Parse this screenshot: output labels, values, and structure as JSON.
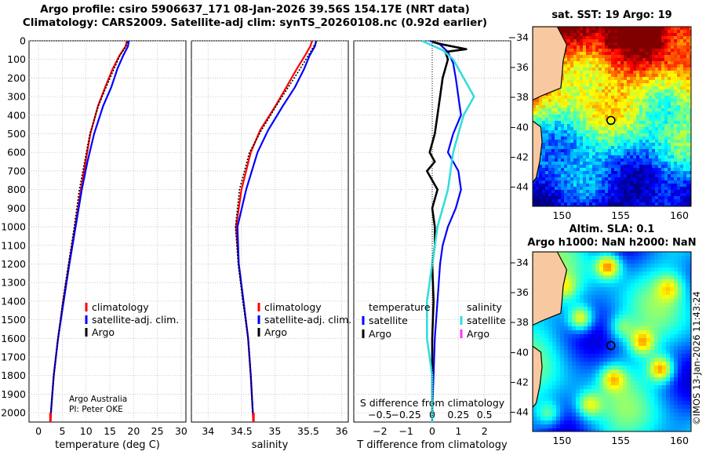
{
  "titles": {
    "line1": "Argo profile: csiro 5906637_171 08-Jan-2026 39.56S 154.17E (NRT data)",
    "line2": "Climatology: CARS2009. Satellite-adj clim: synTS_20260108.nc (0.92d earlier)"
  },
  "stamp": "©IMOS 13-Jan-2026 11:43:24",
  "colors": {
    "climatology": "#ff0000",
    "satellite": "#0000ff",
    "argo": "#000000",
    "sat_salinity": "#33dddd",
    "argo_salinity": "#ff33ff",
    "land": "#f8c8a0"
  },
  "chart_data": [
    {
      "id": "temperature",
      "type": "line",
      "xlabel": "temperature (deg C)",
      "ylabel": "",
      "xlim": [
        -2,
        31
      ],
      "ylim": [
        2050,
        0
      ],
      "xticks": [
        0,
        5,
        10,
        15,
        20,
        25,
        30
      ],
      "yticks": [
        0,
        100,
        200,
        300,
        400,
        500,
        600,
        700,
        800,
        900,
        1000,
        1100,
        1200,
        1300,
        1400,
        1500,
        1600,
        1700,
        1800,
        1900,
        2000
      ],
      "legend": [
        "climatology",
        "satellite-adj. clim.",
        "Argo"
      ],
      "annotation": [
        "Argo Australia",
        "PI: Peter OKE"
      ],
      "series": [
        {
          "name": "climatology",
          "points": [
            [
              18.6,
              0
            ],
            [
              18.3,
              30
            ],
            [
              17.0,
              80
            ],
            [
              15.6,
              150
            ],
            [
              14.0,
              250
            ],
            [
              12.5,
              350
            ],
            [
              10.9,
              500
            ],
            [
              9.9,
              650
            ],
            [
              8.9,
              800
            ],
            [
              7.7,
              1000
            ],
            [
              6.4,
              1200
            ],
            [
              5.2,
              1400
            ],
            [
              4.1,
              1600
            ],
            [
              3.2,
              1800
            ],
            [
              2.6,
              2000
            ],
            [
              2.5,
              2050
            ]
          ]
        },
        {
          "name": "satellite-adj. clim.",
          "points": [
            [
              19.0,
              0
            ],
            [
              18.8,
              30
            ],
            [
              17.8,
              80
            ],
            [
              16.6,
              150
            ],
            [
              15.3,
              250
            ],
            [
              13.6,
              350
            ],
            [
              11.7,
              500
            ],
            [
              10.3,
              650
            ],
            [
              9.1,
              800
            ],
            [
              7.8,
              1000
            ],
            [
              6.5,
              1200
            ],
            [
              5.3,
              1400
            ],
            [
              4.1,
              1600
            ],
            [
              3.2,
              1800
            ],
            [
              2.6,
              2000
            ],
            [
              2.5,
              2050
            ]
          ]
        },
        {
          "name": "Argo",
          "points": [
            [
              18.7,
              5
            ],
            [
              18.4,
              30
            ],
            [
              17.1,
              80
            ],
            [
              15.9,
              150
            ],
            [
              14.2,
              250
            ],
            [
              12.6,
              350
            ],
            [
              10.8,
              500
            ],
            [
              9.7,
              650
            ],
            [
              8.6,
              800
            ],
            [
              7.5,
              1000
            ],
            [
              6.3,
              1200
            ],
            [
              5.1,
              1400
            ],
            [
              4.1,
              1600
            ],
            [
              3.2,
              1800
            ],
            [
              2.6,
              2000
            ]
          ]
        }
      ]
    },
    {
      "id": "salinity",
      "type": "line",
      "xlabel": "salinity",
      "xlim": [
        33.75,
        36.1
      ],
      "ylim": [
        2050,
        0
      ],
      "xticks": [
        34,
        34.5,
        35,
        35.5,
        36
      ],
      "legend": [
        "climatology",
        "satellite-adj. clim.",
        "Argo"
      ],
      "series": [
        {
          "name": "climatology",
          "points": [
            [
              35.56,
              0
            ],
            [
              35.53,
              30
            ],
            [
              35.45,
              80
            ],
            [
              35.33,
              150
            ],
            [
              35.17,
              250
            ],
            [
              35.01,
              350
            ],
            [
              34.78,
              480
            ],
            [
              34.64,
              600
            ],
            [
              34.5,
              800
            ],
            [
              34.42,
              1000
            ],
            [
              34.46,
              1200
            ],
            [
              34.53,
              1400
            ],
            [
              34.6,
              1600
            ],
            [
              34.64,
              1800
            ],
            [
              34.67,
              2000
            ],
            [
              34.68,
              2050
            ]
          ]
        },
        {
          "name": "satellite-adj. clim.",
          "points": [
            [
              35.62,
              0
            ],
            [
              35.6,
              30
            ],
            [
              35.52,
              80
            ],
            [
              35.44,
              150
            ],
            [
              35.3,
              250
            ],
            [
              35.12,
              350
            ],
            [
              34.9,
              480
            ],
            [
              34.74,
              600
            ],
            [
              34.57,
              800
            ],
            [
              34.44,
              1000
            ],
            [
              34.46,
              1200
            ],
            [
              34.53,
              1400
            ],
            [
              34.6,
              1600
            ],
            [
              34.64,
              1800
            ],
            [
              34.67,
              2000
            ],
            [
              34.68,
              2050
            ]
          ]
        },
        {
          "name": "Argo",
          "points": [
            [
              35.62,
              10
            ],
            [
              35.58,
              30
            ],
            [
              35.5,
              80
            ],
            [
              35.38,
              150
            ],
            [
              35.2,
              250
            ],
            [
              35.02,
              350
            ],
            [
              34.8,
              480
            ],
            [
              34.62,
              600
            ],
            [
              34.47,
              800
            ],
            [
              34.41,
              1000
            ],
            [
              34.45,
              1200
            ],
            [
              34.52,
              1400
            ],
            [
              34.6,
              1600
            ],
            [
              34.64,
              1800
            ],
            [
              34.67,
              2000
            ]
          ]
        }
      ]
    },
    {
      "id": "differences",
      "type": "line",
      "xlabel": "T difference from climatology",
      "x2label": "S difference from climatology",
      "xlim": [
        -3,
        3
      ],
      "ylim": [
        2050,
        0
      ],
      "xticks": [
        -2,
        -1,
        0,
        1,
        2
      ],
      "x2ticks": [
        -0.5,
        -0.25,
        0,
        0.25,
        0.5
      ],
      "legend_temperature_title": "temperature",
      "legend_temperature": [
        "satellite",
        "Argo"
      ],
      "legend_salinity_title": "salinity",
      "legend_salinity": [
        "satellite",
        "Argo"
      ],
      "series": [
        {
          "name": "temperature satellite",
          "points": [
            [
              -0.1,
              0
            ],
            [
              0.3,
              20
            ],
            [
              0.6,
              60
            ],
            [
              0.8,
              120
            ],
            [
              0.9,
              200
            ],
            [
              1.0,
              300
            ],
            [
              1.1,
              400
            ],
            [
              0.8,
              500
            ],
            [
              0.6,
              600
            ],
            [
              1.0,
              700
            ],
            [
              1.1,
              800
            ],
            [
              0.9,
              900
            ],
            [
              0.6,
              1000
            ],
            [
              0.4,
              1100
            ],
            [
              0.3,
              1200
            ],
            [
              0.2,
              1400
            ],
            [
              0.1,
              1600
            ],
            [
              0.05,
              1800
            ],
            [
              0.0,
              2000
            ],
            [
              0.0,
              2050
            ]
          ]
        },
        {
          "name": "temperature Argo",
          "points": [
            [
              0.0,
              5
            ],
            [
              0.4,
              20
            ],
            [
              1.3,
              45
            ],
            [
              0.5,
              60
            ],
            [
              0.6,
              100
            ],
            [
              0.4,
              200
            ],
            [
              0.3,
              300
            ],
            [
              0.2,
              400
            ],
            [
              0.1,
              500
            ],
            [
              -0.1,
              600
            ],
            [
              0.1,
              650
            ],
            [
              -0.2,
              700
            ],
            [
              0.2,
              800
            ],
            [
              0.0,
              900
            ],
            [
              0.1,
              1000
            ],
            [
              0.1,
              1100
            ],
            [
              0.0,
              1200
            ],
            [
              0.05,
              1400
            ],
            [
              0.0,
              1600
            ],
            [
              0.0,
              1800
            ],
            [
              0.0,
              2000
            ]
          ]
        },
        {
          "name": "salinity satellite",
          "points": [
            [
              -0.1,
              0
            ],
            [
              0.1,
              50
            ],
            [
              0.2,
              100
            ],
            [
              0.3,
              200
            ],
            [
              0.4,
              300
            ],
            [
              0.3,
              400
            ],
            [
              0.25,
              500
            ],
            [
              0.2,
              600
            ],
            [
              0.15,
              800
            ],
            [
              0.05,
              1000
            ],
            [
              0.0,
              1200
            ],
            [
              -0.05,
              1400
            ],
            [
              -0.05,
              1600
            ],
            [
              0.0,
              1800
            ],
            [
              0.0,
              2000
            ],
            [
              0.0,
              2050
            ]
          ]
        },
        {
          "name": "salinity Argo",
          "points": [
            [
              0,
              0
            ],
            [
              0,
              2050
            ]
          ]
        }
      ]
    },
    {
      "id": "sst-map",
      "type": "heatmap",
      "title": "sat. SST: 19 Argo: 19",
      "xticks": [
        150,
        155,
        160
      ],
      "yticks": [
        -34,
        -36,
        -38,
        -40,
        -42,
        -44
      ],
      "xlim": [
        147.5,
        161
      ],
      "ylim": [
        -45.3,
        -33.3
      ],
      "float_position": [
        154.17,
        -39.56
      ]
    },
    {
      "id": "sla-map",
      "type": "heatmap",
      "title_line1": "Altim. SLA: 0.1",
      "title_line2": "Argo h1000: NaN h2000: NaN",
      "xticks": [
        150,
        155,
        160
      ],
      "yticks": [
        -34,
        -36,
        -38,
        -40,
        -42,
        -44
      ],
      "xlim": [
        147.5,
        161
      ],
      "ylim": [
        -45.3,
        -33.3
      ],
      "float_position": [
        154.17,
        -39.56
      ]
    }
  ]
}
